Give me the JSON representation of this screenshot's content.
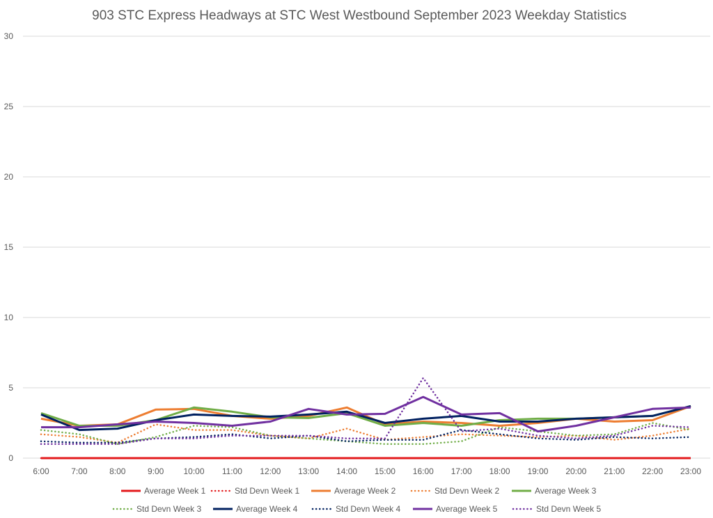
{
  "chart_data": {
    "type": "line",
    "title": "903 STC Express Headways at STC West Westbound September 2023 Weekday Statistics",
    "xlabel": "",
    "ylabel": "",
    "categories": [
      "6:00",
      "7:00",
      "8:00",
      "9:00",
      "10:00",
      "11:00",
      "12:00",
      "13:00",
      "14:00",
      "15:00",
      "16:00",
      "17:00",
      "18:00",
      "19:00",
      "20:00",
      "21:00",
      "22:00",
      "23:00"
    ],
    "ylim": [
      0,
      30
    ],
    "yticks": [
      "0",
      "5",
      "10",
      "15",
      "20",
      "25",
      "30"
    ],
    "grid": true,
    "legend_position": "bottom",
    "series": [
      {
        "name": "Average Week 1",
        "color": "#e31a1c",
        "dash": "solid",
        "values": [
          0,
          0,
          0,
          0,
          0,
          0,
          0,
          0,
          0,
          0,
          0,
          0,
          0,
          0,
          0,
          0,
          0,
          0
        ]
      },
      {
        "name": "Std Devn Week 1",
        "color": "#e31a1c",
        "dash": "dotted",
        "values": [
          0,
          0,
          0,
          0,
          0,
          0,
          0,
          0,
          0,
          0,
          0,
          0,
          0,
          0,
          0,
          0,
          0,
          0
        ]
      },
      {
        "name": "Average Week 2",
        "color": "#ed7d31",
        "dash": "solid",
        "values": [
          2.8,
          2.3,
          2.4,
          3.45,
          3.5,
          3.0,
          2.8,
          3.0,
          3.6,
          2.4,
          2.6,
          2.5,
          2.3,
          2.5,
          2.8,
          2.6,
          2.7,
          3.7
        ]
      },
      {
        "name": "Std Devn Week 2",
        "color": "#ed7d31",
        "dash": "dotted",
        "values": [
          1.7,
          1.5,
          1.1,
          2.4,
          2.0,
          2.0,
          1.6,
          1.4,
          2.1,
          1.3,
          1.5,
          1.7,
          1.6,
          1.5,
          1.6,
          1.3,
          1.6,
          2.1
        ]
      },
      {
        "name": "Average Week 3",
        "color": "#70ad47",
        "dash": "solid",
        "values": [
          3.2,
          2.3,
          2.3,
          2.7,
          3.6,
          3.3,
          2.9,
          2.85,
          3.2,
          2.3,
          2.5,
          2.3,
          2.7,
          2.8,
          2.8,
          2.9,
          3.0,
          3.7
        ]
      },
      {
        "name": "Std Devn Week 3",
        "color": "#70ad47",
        "dash": "dotted",
        "values": [
          2.0,
          1.7,
          1.0,
          1.5,
          2.3,
          2.2,
          1.6,
          1.4,
          1.2,
          1.0,
          1.0,
          1.2,
          2.2,
          1.9,
          1.6,
          1.7,
          2.5,
          2.0
        ]
      },
      {
        "name": "Average Week 4",
        "color": "#002060",
        "dash": "solid",
        "values": [
          3.1,
          2.0,
          2.1,
          2.7,
          3.1,
          3.0,
          2.95,
          3.1,
          3.3,
          2.5,
          2.8,
          3.0,
          2.6,
          2.6,
          2.8,
          2.9,
          3.0,
          3.7
        ]
      },
      {
        "name": "Std Devn Week 4",
        "color": "#002060",
        "dash": "dotted",
        "values": [
          1.2,
          1.1,
          1.1,
          1.4,
          1.5,
          1.7,
          1.4,
          1.6,
          1.2,
          1.3,
          1.3,
          2.0,
          1.7,
          1.4,
          1.3,
          1.5,
          1.4,
          1.5
        ]
      },
      {
        "name": "Average Week 5",
        "color": "#7030a0",
        "dash": "solid",
        "values": [
          2.2,
          2.2,
          2.4,
          2.6,
          2.5,
          2.3,
          2.6,
          3.5,
          3.1,
          3.15,
          4.35,
          3.1,
          3.2,
          1.9,
          2.3,
          2.9,
          3.5,
          3.6
        ]
      },
      {
        "name": "Std Devn Week 5",
        "color": "#7030a0",
        "dash": "dotted",
        "values": [
          1.0,
          1.0,
          1.0,
          1.4,
          1.4,
          1.6,
          1.6,
          1.6,
          1.4,
          1.4,
          5.7,
          1.9,
          2.1,
          1.6,
          1.4,
          1.6,
          2.3,
          2.2
        ]
      }
    ]
  }
}
